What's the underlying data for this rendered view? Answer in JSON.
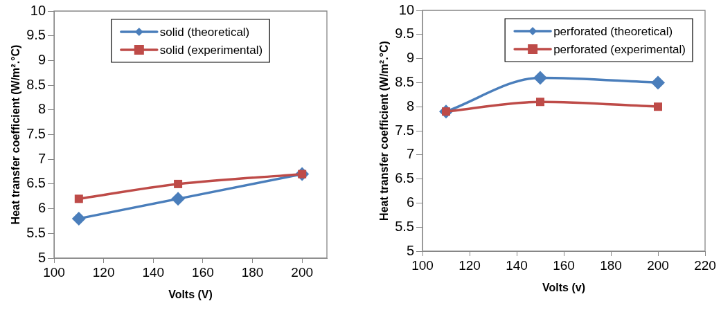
{
  "chart_data": [
    {
      "type": "line",
      "xlabel": "Volts (V)",
      "ylabel": "Heat transfer coefficient (W/m².°C)",
      "x": [
        110,
        150,
        200
      ],
      "xlim": [
        100,
        210
      ],
      "xticks": [
        100,
        120,
        140,
        160,
        180,
        200
      ],
      "ylim": [
        5,
        10
      ],
      "yticks": [
        5,
        5.5,
        6,
        6.5,
        7,
        7.5,
        8,
        8.5,
        9,
        9.5,
        10
      ],
      "grid": false,
      "legend": "top",
      "series": [
        {
          "name": "solid (theoretical)",
          "color": "#4a7ebb",
          "values": [
            5.8,
            6.2,
            6.7
          ],
          "marker": "diamond"
        },
        {
          "name": "solid (experimental)",
          "color": "#be4b48",
          "values": [
            6.2,
            6.5,
            6.7
          ],
          "marker": "square"
        }
      ]
    },
    {
      "type": "line",
      "xlabel": "Volts (v)",
      "ylabel": "Heat transfer coefficient (W/m².°C)",
      "x": [
        110,
        150,
        200
      ],
      "xlim": [
        100,
        220
      ],
      "xticks": [
        100,
        120,
        140,
        160,
        180,
        200,
        220
      ],
      "ylim": [
        5,
        10
      ],
      "yticks": [
        5,
        5.5,
        6,
        6.5,
        7,
        7.5,
        8,
        8.5,
        9,
        9.5,
        10
      ],
      "grid": false,
      "legend": "top right",
      "series": [
        {
          "name": "perforated (theoretical)",
          "color": "#4a7ebb",
          "values": [
            7.9,
            8.6,
            8.5
          ],
          "marker": "diamond"
        },
        {
          "name": "perforated (experimental)",
          "color": "#be4b48",
          "values": [
            7.9,
            8.1,
            8.0
          ],
          "marker": "square"
        }
      ]
    }
  ]
}
